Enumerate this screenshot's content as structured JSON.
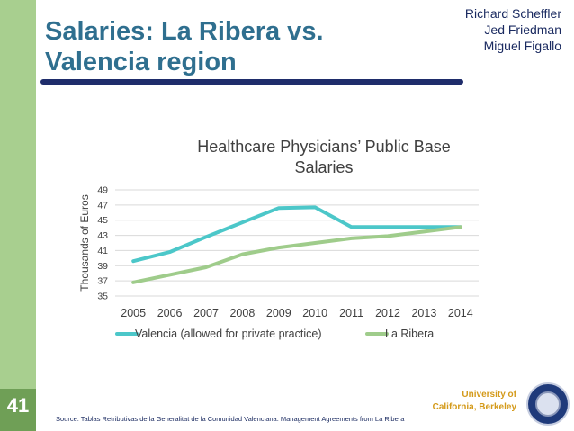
{
  "slide": {
    "number": "41",
    "title_line1": "Salaries: La Ribera vs.",
    "title_line2": "Valencia region",
    "authors": [
      "Richard Scheffler",
      "Jed Friedman",
      "Miguel Figallo"
    ],
    "university_line1": "University of",
    "university_line2": "California, Berkeley",
    "source": "Source: Tablas Retributivas de la Generalitat de la Comunidad Valenciana. Management Agreements from La Ribera"
  },
  "colors": {
    "valencia": "#4cc7c9",
    "la_ribera": "#9fcc8b",
    "sidebar": "#a8cf8f",
    "title": "#2f6f8f",
    "university": "#d49a1a"
  },
  "chart_data": {
    "type": "line",
    "title": "Healthcare Physicians’ Public Base Salaries",
    "title_line1": "Healthcare Physicians’ Public Base",
    "title_line2": "Salaries",
    "xlabel": "",
    "ylabel": "Thousands of Euros",
    "categories": [
      "2005",
      "2006",
      "2007",
      "2008",
      "2009",
      "2010",
      "2011",
      "2012",
      "2013",
      "2014"
    ],
    "yticks": [
      "35",
      "37",
      "39",
      "41",
      "43",
      "45",
      "47",
      "49"
    ],
    "ylim": [
      35,
      49
    ],
    "grid": true,
    "legend_position": "bottom",
    "series": [
      {
        "name": "Valencia (allowed for private practice)",
        "values": [
          39.6,
          40.8,
          42.8,
          44.7,
          46.6,
          46.7,
          44.1,
          44.1,
          44.1,
          44.1
        ]
      },
      {
        "name": "La Ribera",
        "values": [
          36.8,
          37.8,
          38.8,
          40.5,
          41.4,
          42.0,
          42.6,
          42.9,
          43.5,
          44.1
        ]
      }
    ]
  }
}
